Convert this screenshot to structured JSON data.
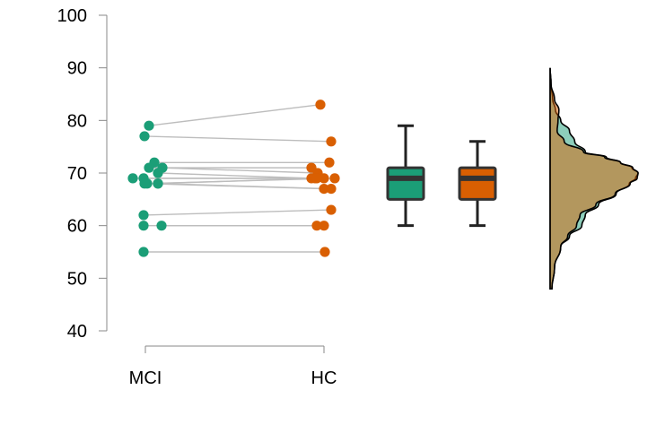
{
  "chart_data": {
    "type": "raincloud",
    "title": "",
    "xlabel": "",
    "ylabel": "",
    "ylim": [
      40,
      100
    ],
    "yticks": [
      40,
      50,
      60,
      70,
      80,
      90,
      100
    ],
    "categories": [
      "MCI",
      "HC"
    ],
    "colors": {
      "MCI": "#1b9e77",
      "HC": "#d95f02",
      "connector": "#bdbdbd"
    },
    "pairs": [
      {
        "MCI": 79,
        "HC": 83
      },
      {
        "MCI": 77,
        "HC": 76
      },
      {
        "MCI": 72,
        "HC": 72
      },
      {
        "MCI": 71,
        "HC": 71
      },
      {
        "MCI": 71,
        "HC": 70
      },
      {
        "MCI": 70,
        "HC": 69
      },
      {
        "MCI": 69,
        "HC": 69
      },
      {
        "MCI": 69,
        "HC": 69
      },
      {
        "MCI": 68,
        "HC": 69
      },
      {
        "MCI": 68,
        "HC": 67
      },
      {
        "MCI": 68,
        "HC": 69
      },
      {
        "MCI": 68,
        "HC": 67
      },
      {
        "MCI": 62,
        "HC": 63
      },
      {
        "MCI": 60,
        "HC": 60
      },
      {
        "MCI": 60,
        "HC": 60
      },
      {
        "MCI": 55,
        "HC": 55
      }
    ],
    "boxplots": [
      {
        "name": "MCI",
        "min": 60,
        "q1": 65,
        "median": 69,
        "q3": 71,
        "max": 79
      },
      {
        "name": "HC",
        "min": 60,
        "q1": 65,
        "median": 69,
        "q3": 71,
        "max": 76
      }
    ],
    "density": {
      "y": [
        48,
        52,
        56,
        58,
        60,
        62,
        64,
        66,
        68,
        69,
        70,
        71,
        72,
        73,
        74,
        76,
        78,
        80,
        82,
        84,
        87,
        90
      ],
      "MCI": [
        0.02,
        0.05,
        0.12,
        0.22,
        0.36,
        0.4,
        0.55,
        0.75,
        0.9,
        0.97,
        1.0,
        0.93,
        0.8,
        0.64,
        0.4,
        0.28,
        0.22,
        0.12,
        0.06,
        0.03,
        0.01,
        0.0
      ],
      "HC": [
        0.02,
        0.05,
        0.12,
        0.2,
        0.3,
        0.34,
        0.52,
        0.74,
        0.91,
        0.99,
        1.0,
        0.94,
        0.8,
        0.62,
        0.38,
        0.16,
        0.08,
        0.09,
        0.1,
        0.05,
        0.01,
        0.0
      ]
    }
  }
}
